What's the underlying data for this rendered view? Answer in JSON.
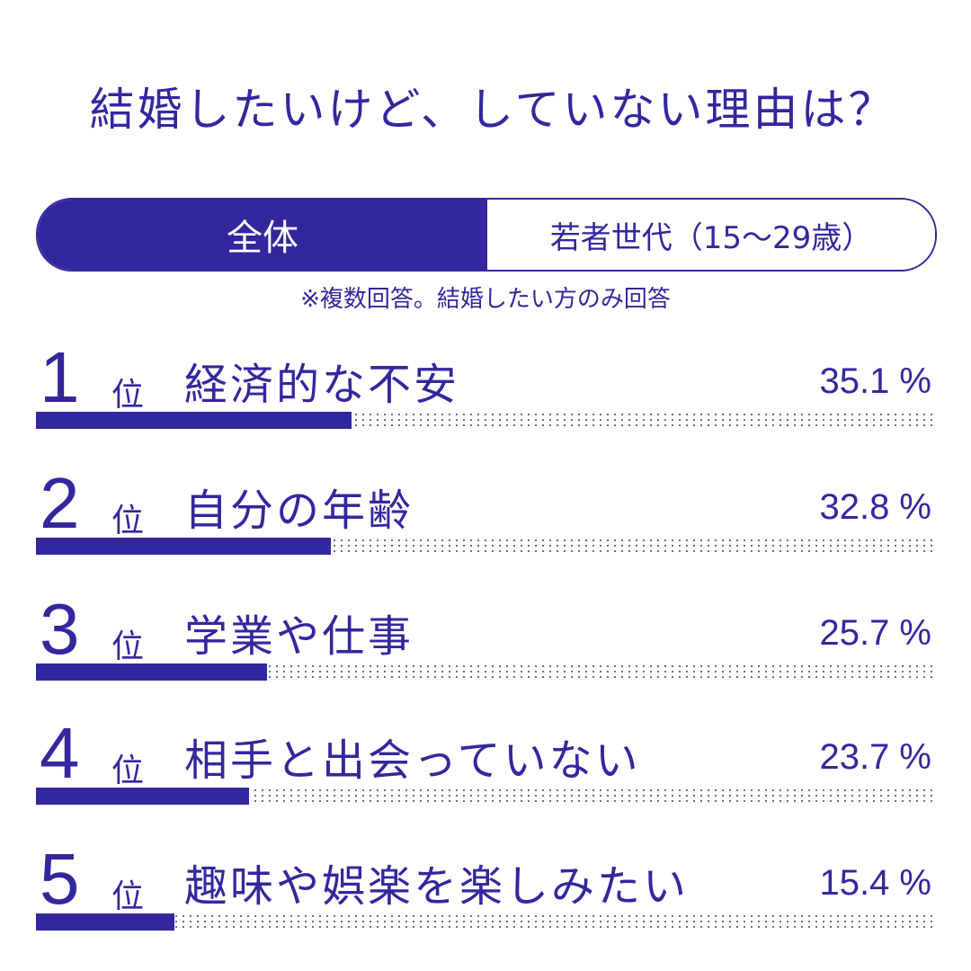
{
  "title": "結婚したいけど、していない理由は？",
  "toggle": {
    "active": "全体",
    "inactive": "若者世代（15〜29歳）"
  },
  "note": "※複数回答。結婚したい方のみ回答",
  "rank_suffix": "位",
  "colors": {
    "accent": "#33279e"
  },
  "chart_data": {
    "type": "bar",
    "title": "結婚したいけど、していない理由は？",
    "orientation": "horizontal",
    "unit": "%",
    "xlim": [
      0,
      100
    ],
    "ranks": [
      "1",
      "2",
      "3",
      "4",
      "5"
    ],
    "categories": [
      "経済的な不安",
      "自分の年齢",
      "学業や仕事",
      "相手と出会っていない",
      "趣味や娯楽を楽しみたい"
    ],
    "values": [
      35.1,
      32.8,
      25.7,
      23.7,
      15.4
    ],
    "value_labels": [
      "35.1 %",
      "32.8 %",
      "25.7 %",
      "23.7 %",
      "15.4 %"
    ]
  }
}
